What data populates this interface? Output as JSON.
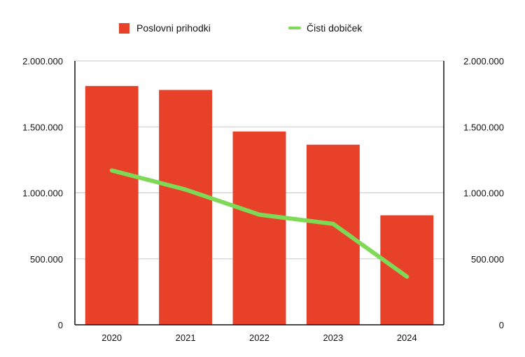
{
  "chart_data": {
    "type": "bar",
    "categories": [
      "2020",
      "2021",
      "2022",
      "2023",
      "2024"
    ],
    "series": [
      {
        "name": "Poslovni prihodki",
        "type": "bar",
        "axis": "left",
        "color": "#e8412a",
        "values": [
          1810000,
          1780000,
          1465000,
          1365000,
          830000
        ]
      },
      {
        "name": "Čisti dobiček",
        "type": "line",
        "axis": "right",
        "color": "#7ed957",
        "values": [
          1170000,
          1025000,
          835000,
          765000,
          365000
        ]
      }
    ],
    "yTicks": [
      "0",
      "500.000",
      "1.000.000",
      "1.500.000",
      "2.000.000"
    ],
    "ylim": [
      0,
      2000000
    ],
    "y2lim": [
      0,
      2000000
    ],
    "grid": true,
    "legend_position": "top"
  }
}
